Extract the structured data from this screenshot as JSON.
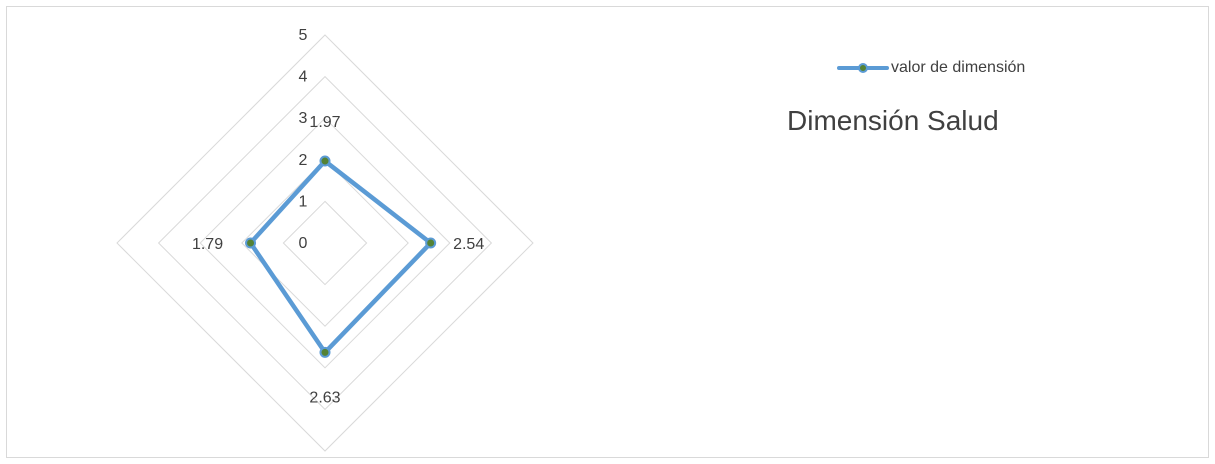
{
  "chart_data": {
    "type": "radar",
    "title": "",
    "axes": [
      "",
      "",
      "",
      ""
    ],
    "series": [
      {
        "name": "valor de dimensión",
        "values": [
          1.97,
          2.54,
          2.63,
          1.79
        ]
      }
    ],
    "data_labels": [
      "1.97",
      "2.54",
      "2.63",
      "1.79"
    ],
    "scale": {
      "min": 0,
      "max": 5,
      "step": 1,
      "tick_labels": [
        "0",
        "1",
        "2",
        "3",
        "4",
        "5"
      ]
    },
    "legend": {
      "entries": [
        "valor de dimensión"
      ],
      "placement": "top-right"
    },
    "colors": {
      "line": "#5b9bd5",
      "marker": "#548235",
      "grid": "#d9d9d9",
      "text": "#404040"
    }
  },
  "annotation": {
    "text": "Dimensión Salud"
  }
}
